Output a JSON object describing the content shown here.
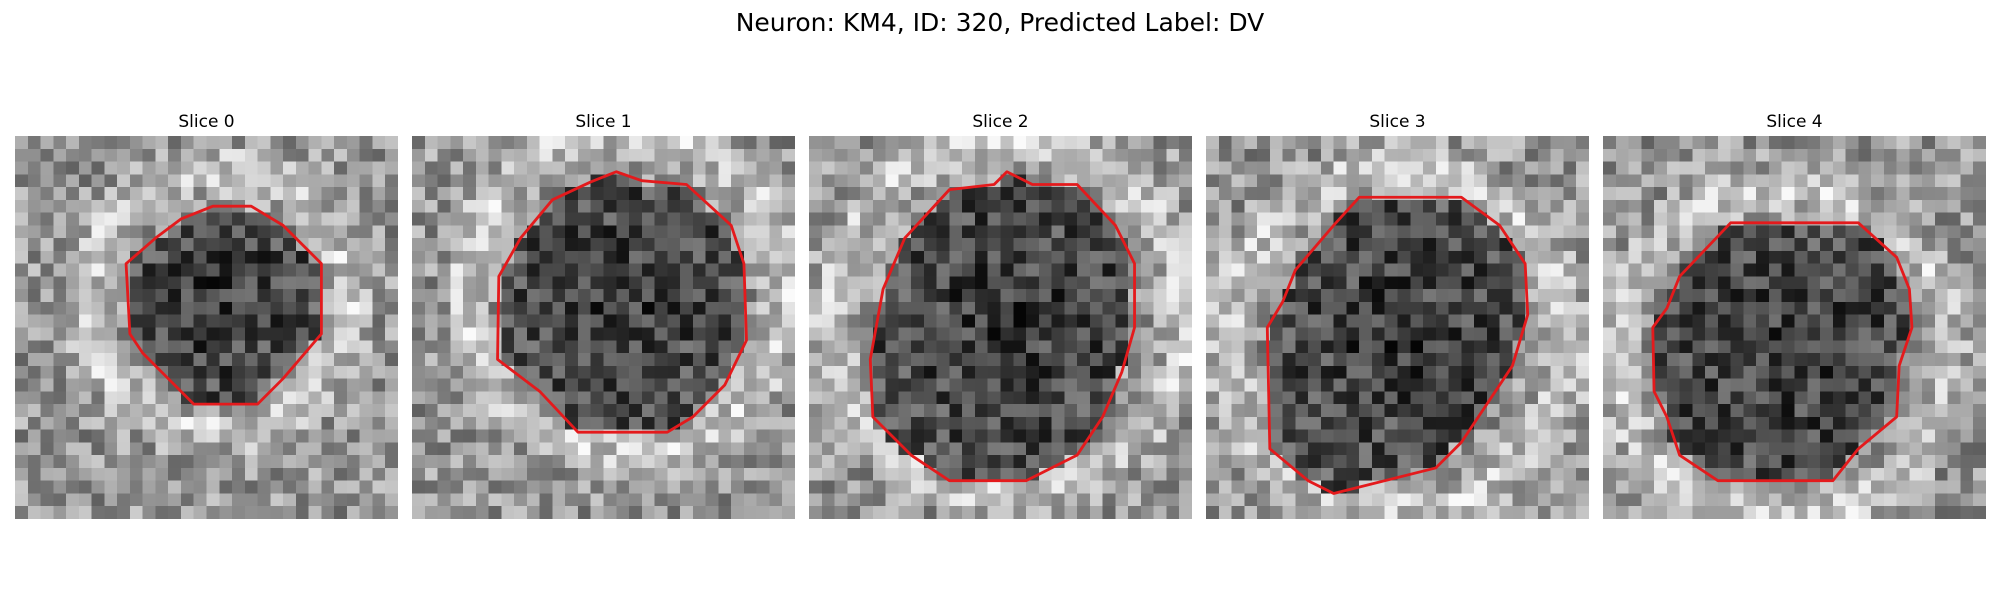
{
  "figure": {
    "title": "Neuron: KM4, ID: 320, Predicted Label: DV",
    "contour_color": "#e41a1c"
  },
  "panels": [
    {
      "title": "Slice 0"
    },
    {
      "title": "Slice 1"
    },
    {
      "title": "Slice 2"
    },
    {
      "title": "Slice 3"
    },
    {
      "title": "Slice 4"
    }
  ]
}
